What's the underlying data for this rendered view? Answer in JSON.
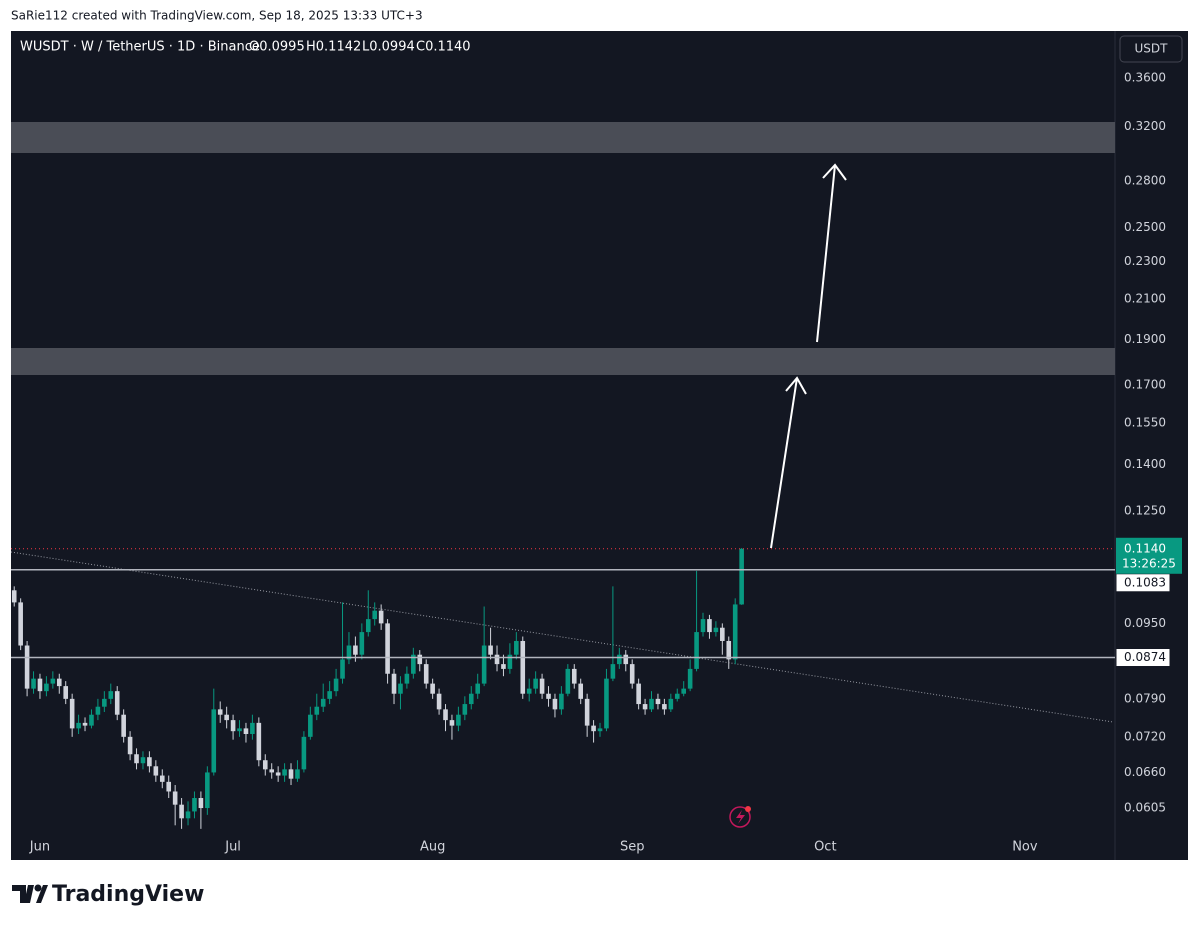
{
  "header": {
    "attribution": "SaRie112 created with TradingView.com, Sep 18, 2025 13:33 UTC+3",
    "symbol": "WUSDT · W / TetherUS · 1D · Binance",
    "ohlc": [
      "O0.0995",
      "H0.1142",
      "L0.0994",
      "C0.1140"
    ],
    "currency": "USDT",
    "brand": "TradingView"
  },
  "chart_data": {
    "type": "candlestick",
    "log_scale": true,
    "grid": false,
    "up_color": "#089981",
    "down_color": "#d1d4dc",
    "open": [
      0.103,
      0.1,
      0.09,
      0.081,
      0.083,
      0.0805,
      0.082,
      0.083,
      0.0815,
      0.079,
      0.0735,
      0.0745,
      0.074,
      0.076,
      0.0775,
      0.079,
      0.0805,
      0.076,
      0.072,
      0.069,
      0.0675,
      0.0685,
      0.067,
      0.0655,
      0.0645,
      0.063,
      0.061,
      0.059,
      0.06,
      0.062,
      0.0605,
      0.066,
      0.077,
      0.076,
      0.075,
      0.073,
      0.0735,
      0.0725,
      0.0745,
      0.068,
      0.0665,
      0.066,
      0.0655,
      0.0665,
      0.065,
      0.0665,
      0.072,
      0.076,
      0.0775,
      0.079,
      0.0805,
      0.083,
      0.087,
      0.09,
      0.088,
      0.093,
      0.096,
      0.098,
      0.095,
      0.084,
      0.08,
      0.082,
      0.084,
      0.088,
      0.086,
      0.082,
      0.08,
      0.077,
      0.075,
      0.074,
      0.076,
      0.078,
      0.08,
      0.082,
      0.09,
      0.088,
      0.086,
      0.085,
      0.088,
      0.091,
      0.08,
      0.081,
      0.083,
      0.08,
      0.079,
      0.077,
      0.08,
      0.085,
      0.082,
      0.079,
      0.074,
      0.073,
      0.0735,
      0.083,
      0.086,
      0.088,
      0.086,
      0.082,
      0.078,
      0.077,
      0.079,
      0.078,
      0.077,
      0.079,
      0.08,
      0.081,
      0.085,
      0.093,
      0.096,
      0.093,
      0.094,
      0.091,
      0.087,
      0.0995
    ],
    "high": [
      0.104,
      0.101,
      0.091,
      0.0845,
      0.084,
      0.0835,
      0.0845,
      0.084,
      0.0825,
      0.08,
      0.076,
      0.0755,
      0.077,
      0.079,
      0.0805,
      0.082,
      0.0815,
      0.077,
      0.073,
      0.07,
      0.0695,
      0.0695,
      0.068,
      0.0665,
      0.0655,
      0.064,
      0.062,
      0.0615,
      0.063,
      0.063,
      0.067,
      0.081,
      0.0785,
      0.0775,
      0.076,
      0.075,
      0.0745,
      0.076,
      0.0755,
      0.069,
      0.0675,
      0.067,
      0.0675,
      0.0675,
      0.068,
      0.073,
      0.0775,
      0.08,
      0.082,
      0.0825,
      0.085,
      0.1,
      0.093,
      0.092,
      0.095,
      0.103,
      0.1,
      0.0995,
      0.096,
      0.085,
      0.0835,
      0.0855,
      0.0895,
      0.089,
      0.087,
      0.083,
      0.081,
      0.078,
      0.076,
      0.0775,
      0.0795,
      0.0815,
      0.084,
      0.099,
      0.094,
      0.09,
      0.088,
      0.0905,
      0.093,
      0.092,
      0.083,
      0.0845,
      0.084,
      0.0815,
      0.08,
      0.0815,
      0.086,
      0.086,
      0.083,
      0.08,
      0.075,
      0.0745,
      0.085,
      0.104,
      0.0895,
      0.089,
      0.087,
      0.083,
      0.079,
      0.0805,
      0.08,
      0.079,
      0.08,
      0.081,
      0.0825,
      0.087,
      0.108,
      0.0975,
      0.097,
      0.0955,
      0.095,
      0.092,
      0.101,
      0.1142
    ],
    "low": [
      0.099,
      0.089,
      0.0795,
      0.08,
      0.079,
      0.0795,
      0.081,
      0.08,
      0.078,
      0.072,
      0.0725,
      0.073,
      0.0735,
      0.075,
      0.0765,
      0.078,
      0.075,
      0.071,
      0.068,
      0.0665,
      0.0665,
      0.066,
      0.0645,
      0.0635,
      0.062,
      0.058,
      0.0575,
      0.058,
      0.059,
      0.0575,
      0.0595,
      0.0655,
      0.0745,
      0.0735,
      0.0715,
      0.072,
      0.071,
      0.0715,
      0.067,
      0.0655,
      0.065,
      0.0645,
      0.0645,
      0.064,
      0.0645,
      0.066,
      0.0715,
      0.075,
      0.0765,
      0.078,
      0.0795,
      0.082,
      0.086,
      0.0865,
      0.087,
      0.092,
      0.0945,
      0.0935,
      0.082,
      0.078,
      0.077,
      0.081,
      0.083,
      0.0845,
      0.081,
      0.079,
      0.076,
      0.073,
      0.0715,
      0.073,
      0.075,
      0.077,
      0.079,
      0.0815,
      0.087,
      0.0845,
      0.0835,
      0.084,
      0.087,
      0.079,
      0.0785,
      0.08,
      0.079,
      0.0775,
      0.0755,
      0.076,
      0.0795,
      0.081,
      0.078,
      0.072,
      0.071,
      0.072,
      0.073,
      0.0825,
      0.085,
      0.0845,
      0.081,
      0.077,
      0.076,
      0.0765,
      0.077,
      0.076,
      0.0765,
      0.0785,
      0.0795,
      0.0805,
      0.0845,
      0.092,
      0.0915,
      0.092,
      0.088,
      0.085,
      0.086,
      0.0994
    ],
    "close": [
      0.1,
      0.09,
      0.081,
      0.083,
      0.0805,
      0.082,
      0.083,
      0.0815,
      0.079,
      0.0735,
      0.0745,
      0.074,
      0.076,
      0.0775,
      0.079,
      0.0805,
      0.076,
      0.072,
      0.069,
      0.0675,
      0.0685,
      0.067,
      0.0655,
      0.0645,
      0.063,
      0.061,
      0.059,
      0.06,
      0.062,
      0.0605,
      0.066,
      0.077,
      0.076,
      0.075,
      0.073,
      0.0735,
      0.0725,
      0.0745,
      0.068,
      0.0665,
      0.066,
      0.0655,
      0.0665,
      0.065,
      0.0665,
      0.072,
      0.076,
      0.0775,
      0.079,
      0.0805,
      0.083,
      0.087,
      0.09,
      0.088,
      0.093,
      0.096,
      0.098,
      0.095,
      0.084,
      0.08,
      0.082,
      0.084,
      0.088,
      0.086,
      0.082,
      0.08,
      0.077,
      0.075,
      0.074,
      0.076,
      0.078,
      0.08,
      0.082,
      0.09,
      0.088,
      0.086,
      0.085,
      0.088,
      0.091,
      0.08,
      0.081,
      0.083,
      0.08,
      0.079,
      0.077,
      0.08,
      0.085,
      0.082,
      0.079,
      0.074,
      0.073,
      0.0735,
      0.083,
      0.086,
      0.088,
      0.086,
      0.082,
      0.078,
      0.077,
      0.079,
      0.078,
      0.077,
      0.079,
      0.08,
      0.081,
      0.085,
      0.093,
      0.096,
      0.093,
      0.094,
      0.091,
      0.087,
      0.0995,
      0.114
    ],
    "ylim": [
      0.0572,
      0.404
    ],
    "yticks": [
      {
        "value": 0.36,
        "label": "0.3600"
      },
      {
        "value": 0.32,
        "label": "0.3200"
      },
      {
        "value": 0.28,
        "label": "0.2800"
      },
      {
        "value": 0.25,
        "label": "0.2500"
      },
      {
        "value": 0.23,
        "label": "0.2300"
      },
      {
        "value": 0.21,
        "label": "0.2100"
      },
      {
        "value": 0.19,
        "label": "0.1900"
      },
      {
        "value": 0.17,
        "label": "0.1700"
      },
      {
        "value": 0.155,
        "label": "0.1550"
      },
      {
        "value": 0.14,
        "label": "0.1400"
      },
      {
        "value": 0.125,
        "label": "0.1250"
      },
      {
        "value": 0.095,
        "label": "0.0950"
      },
      {
        "value": 0.079,
        "label": "0.0790"
      },
      {
        "value": 0.072,
        "label": "0.0720"
      },
      {
        "value": 0.066,
        "label": "0.0660"
      },
      {
        "value": 0.0605,
        "label": "0.0605"
      }
    ],
    "xlim": [
      -0.5,
      171
    ],
    "xticks": [
      {
        "value": 4,
        "label": "Jun"
      },
      {
        "value": 34,
        "label": "Jul"
      },
      {
        "value": 65,
        "label": "Aug"
      },
      {
        "value": 96,
        "label": "Sep"
      },
      {
        "value": 126,
        "label": "Oct"
      },
      {
        "value": 157,
        "label": "Nov"
      }
    ],
    "last_price": {
      "value": 0.114,
      "label": "0.1140",
      "countdown": "13:26:25",
      "color": "#089981"
    },
    "levels": [
      {
        "value": 0.1083,
        "label": "0.1083"
      },
      {
        "value": 0.0874,
        "label": "0.0874"
      }
    ]
  }
}
